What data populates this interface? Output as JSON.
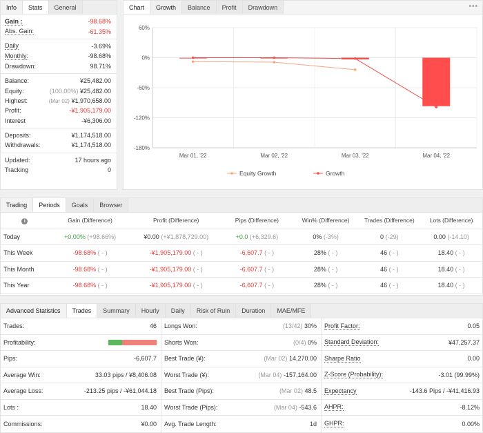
{
  "stats_panel": {
    "tabs": [
      "Info",
      "Stats",
      "General"
    ],
    "gain_label": "Gain :",
    "gain_value": "-98.68%",
    "abs_gain_label": "Abs. Gain:",
    "abs_gain_value": "-61.35%",
    "daily_label": "Daily",
    "daily_value": "-3.69%",
    "monthly_label": "Monthly:",
    "monthly_value": "-98.68%",
    "drawdown_label": "Drawdown:",
    "drawdown_value": "98.71%",
    "balance_label": "Balance:",
    "balance_value": "¥25,482.00",
    "equity_label": "Equity:",
    "equity_note": "(100.00%)",
    "equity_value": "¥25,482.00",
    "highest_label": "Highest:",
    "highest_note": "(Mar 02)",
    "highest_value": "¥1,970,658.00",
    "profit_label": "Profit:",
    "profit_value": "-¥1,905,179.00",
    "interest_label": "Interest",
    "interest_value": "-¥6,306.00",
    "deposits_label": "Deposits:",
    "deposits_value": "¥1,174,518.00",
    "withdrawals_label": "Withdrawals:",
    "withdrawals_value": "¥1,174,518.00",
    "updated_label": "Updated:",
    "updated_value": "17 hours ago",
    "tracking_label": "Tracking",
    "tracking_value": "0"
  },
  "chart_panel": {
    "tabs": [
      "Chart",
      "Growth",
      "Balance",
      "Profit",
      "Drawdown"
    ],
    "menu_icon": "more-dots-icon"
  },
  "chart_data": {
    "type": "line",
    "categories": [
      "Mar 01, '22",
      "Mar 02, '22",
      "Mar 03, '22",
      "Mar 04, '22"
    ],
    "y_ticks": [
      "60%",
      "0%",
      "-60%",
      "-120%",
      "-180%"
    ],
    "ylim": [
      -180,
      60
    ],
    "series": [
      {
        "name": "Equity Growth",
        "color": "#f4a582",
        "values": [
          -8,
          -9,
          -24,
          null
        ]
      },
      {
        "name": "Growth",
        "color": "#ef5350",
        "values": [
          0,
          0,
          -1.8,
          -98.68
        ]
      }
    ],
    "bars": [
      {
        "category": "Mar 01, '22",
        "from": 0,
        "to": 0,
        "color": "#f48c8c"
      },
      {
        "category": "Mar 02, '22",
        "from": 0,
        "to": 0,
        "color": "#f48c8c"
      },
      {
        "category": "Mar 03, '22",
        "from": 0,
        "to": -3.5,
        "color": "#ef5350"
      },
      {
        "category": "Mar 04, '22",
        "from": 0,
        "to": -96.9,
        "color": "#ff4d4d"
      }
    ],
    "legend_position": "bottom"
  },
  "periods_panel": {
    "tabs": [
      "Trading",
      "Periods",
      "Goals",
      "Browser"
    ],
    "info_icon": "info-icon",
    "headers": [
      "Gain (Difference)",
      "Profit (Difference)",
      "Pips (Difference)",
      "Win% (Difference)",
      "Trades (Difference)",
      "Lots (Difference)"
    ],
    "rows": [
      {
        "label": "Today",
        "gain": "+0.00%",
        "gain_diff": "(+98.66%)",
        "profit": "¥0.00",
        "profit_diff": "(+¥1,878,729.00)",
        "pips": "+0.0",
        "pips_diff": "(+6,329.6)",
        "win": "0%",
        "win_diff": "(-3%)",
        "trades": "0",
        "trades_diff": "(-29)",
        "lots": "0.00",
        "lots_diff": "(-14.10)"
      },
      {
        "label": "This Week",
        "gain": "-98.68%",
        "gain_diff": "( - )",
        "profit": "-¥1,905,179.00",
        "profit_diff": "( - )",
        "pips": "-6,607.7",
        "pips_diff": "( - )",
        "win": "28%",
        "win_diff": "( - )",
        "trades": "46",
        "trades_diff": "( - )",
        "lots": "18.40",
        "lots_diff": "( - )"
      },
      {
        "label": "This Month",
        "gain": "-98.68%",
        "gain_diff": "( - )",
        "profit": "-¥1,905,179.00",
        "profit_diff": "( - )",
        "pips": "-6,607.7",
        "pips_diff": "( - )",
        "win": "28%",
        "win_diff": "( - )",
        "trades": "46",
        "trades_diff": "( - )",
        "lots": "18.40",
        "lots_diff": "( - )"
      },
      {
        "label": "This Year",
        "gain": "-98.68%",
        "gain_diff": "( - )",
        "profit": "-¥1,905,179.00",
        "profit_diff": "( - )",
        "pips": "-6,607.7",
        "pips_diff": "( - )",
        "win": "28%",
        "win_diff": "( - )",
        "trades": "46",
        "trades_diff": "( - )",
        "lots": "18.40",
        "lots_diff": "( - )"
      }
    ]
  },
  "advanced_panel": {
    "tabs": [
      "Advanced Statistics",
      "Trades",
      "Summary",
      "Hourly",
      "Daily",
      "Risk of Ruin",
      "Duration",
      "MAE/MFE"
    ],
    "col1": {
      "trades_label": "Trades:",
      "trades_value": "46",
      "profitability_label": "Profitability:",
      "profitability_win_pct": 28,
      "pips_label": "Pips:",
      "pips_value": "-6,607.7",
      "avg_win_label": "Average Win:",
      "avg_win_value": "33.03 pips / ¥8,406.08",
      "avg_loss_label": "Average Loss:",
      "avg_loss_value": "-213.25 pips / -¥61,044.18",
      "lots_label": "Lots :",
      "lots_value": "18.40",
      "commissions_label": "Commissions:",
      "commissions_value": "¥0.00"
    },
    "col2": {
      "longs_label": "Longs Won:",
      "longs_note": "(13/42)",
      "longs_value": "30%",
      "shorts_label": "Shorts Won:",
      "shorts_note": "(0/4)",
      "shorts_value": "0%",
      "best_trade_label": "Best Trade (¥):",
      "best_trade_note": "(Mar 02)",
      "best_trade_value": "14,270.00",
      "worst_trade_label": "Worst Trade (¥):",
      "worst_trade_note": "(Mar 04)",
      "worst_trade_value": "-157,164.00",
      "best_pips_label": "Best Trade (Pips):",
      "best_pips_note": "(Mar 02)",
      "best_pips_value": "48.5",
      "worst_pips_label": "Worst Trade (Pips):",
      "worst_pips_note": "(Mar 04)",
      "worst_pips_value": "-543.6",
      "avg_len_label": "Avg. Trade Length:",
      "avg_len_value": "1d"
    },
    "col3": {
      "pf_label": "Profit Factor:",
      "pf_value": "0.05",
      "sd_label": "Standard Deviation:",
      "sd_value": "¥47,257.37",
      "sharpe_label": "Sharpe Ratio",
      "sharpe_value": "0.00",
      "z_label": "Z-Score (Probability):",
      "z_value": "-3.01 (99.99%)",
      "exp_label": "Expectancy",
      "exp_value": "-143.6 Pips / -¥41,416.93",
      "ahpr_label": "AHPR:",
      "ahpr_value": "-8.12%",
      "ghpr_label": "GHPR:",
      "ghpr_value": "0.00%"
    }
  }
}
